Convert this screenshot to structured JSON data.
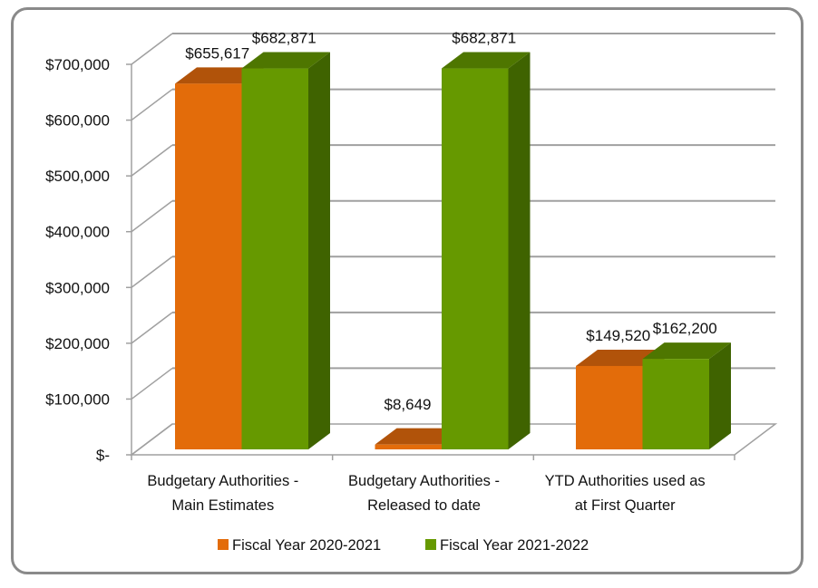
{
  "chart_data": {
    "type": "bar",
    "style": "3d-clustered-column",
    "title": "",
    "xlabel": "",
    "ylabel": "",
    "categories": [
      [
        "Budgetary Authorities -",
        "Main Estimates"
      ],
      [
        "Budgetary Authorities -",
        "Released to date"
      ],
      [
        "YTD Authorities used as",
        "at First Quarter"
      ]
    ],
    "series": [
      {
        "name": "Fiscal Year 2020-2021",
        "color": "#e36c0a",
        "top_color": "#b1530a",
        "side_color": "#a04a08",
        "values": [
          655617,
          8649,
          149520
        ],
        "labels": [
          "$655,617",
          "$8,649",
          "$149,520"
        ]
      },
      {
        "name": "Fiscal Year 2021-2022",
        "color": "#669900",
        "top_color": "#4e7600",
        "side_color": "#3f6300",
        "values": [
          682871,
          682871,
          162200
        ],
        "labels": [
          "$682,871",
          "$682,871",
          "$162,200"
        ]
      }
    ],
    "ylim": [
      0,
      700000
    ],
    "yticks": [
      0,
      100000,
      200000,
      300000,
      400000,
      500000,
      600000,
      700000
    ],
    "ytick_labels": [
      "$-",
      "$100,000",
      "$200,000",
      "$300,000",
      "$400,000",
      "$500,000",
      "$600,000",
      "$700,000"
    ],
    "grid": true,
    "legend": "bottom"
  }
}
